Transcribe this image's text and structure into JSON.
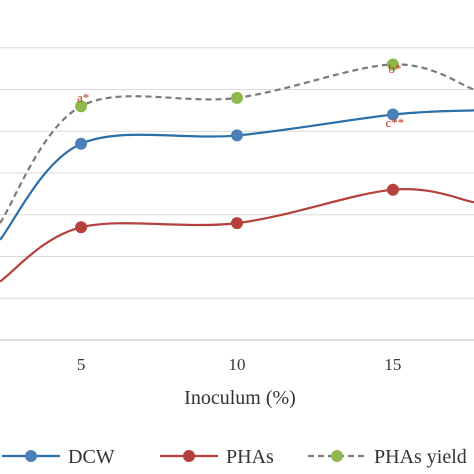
{
  "chart_data": {
    "type": "line",
    "xlabel": "Inoculum (%)",
    "x_ticks": [
      "5",
      "10",
      "15"
    ],
    "xlim": [
      2.4,
      17.6
    ],
    "ylim": [
      0,
      80
    ],
    "grid": true,
    "legend_position": "bottom",
    "series": [
      {
        "name": "DCW",
        "color": "#2a6fa8",
        "marker_color": "#4a7fb8",
        "line_style": "solid",
        "points": [
          [
            2.4,
            24
          ],
          [
            5,
            47
          ],
          [
            10,
            49
          ],
          [
            15,
            54
          ],
          [
            17.6,
            55
          ]
        ],
        "markers": [
          [
            5,
            47
          ],
          [
            10,
            49
          ],
          [
            15,
            54
          ]
        ]
      },
      {
        "name": "PHAs",
        "color": "#b5403c",
        "marker_color": "#b5403c",
        "line_style": "solid",
        "points": [
          [
            2.4,
            14
          ],
          [
            5,
            27
          ],
          [
            10,
            28
          ],
          [
            15,
            36
          ],
          [
            17.6,
            33
          ]
        ],
        "markers": [
          [
            5,
            27
          ],
          [
            10,
            28
          ],
          [
            15,
            36
          ]
        ]
      },
      {
        "name": "PHAs yield",
        "color": "#7a7a7a",
        "marker_color": "#8fb84a",
        "line_style": "dashed",
        "points": [
          [
            2.4,
            28
          ],
          [
            5,
            56
          ],
          [
            10,
            58
          ],
          [
            15,
            66
          ],
          [
            17.6,
            60
          ]
        ],
        "markers": [
          [
            5,
            56
          ],
          [
            10,
            58
          ],
          [
            15,
            66
          ]
        ]
      }
    ],
    "annotations": [
      {
        "text": "a*",
        "x": 5,
        "y": 57,
        "color": "#c0392b"
      },
      {
        "text": "b*",
        "x": 15,
        "y": 64,
        "color": "#c0392b"
      },
      {
        "text": "c**",
        "x": 15,
        "y": 51,
        "color": "#c0392b"
      }
    ]
  }
}
